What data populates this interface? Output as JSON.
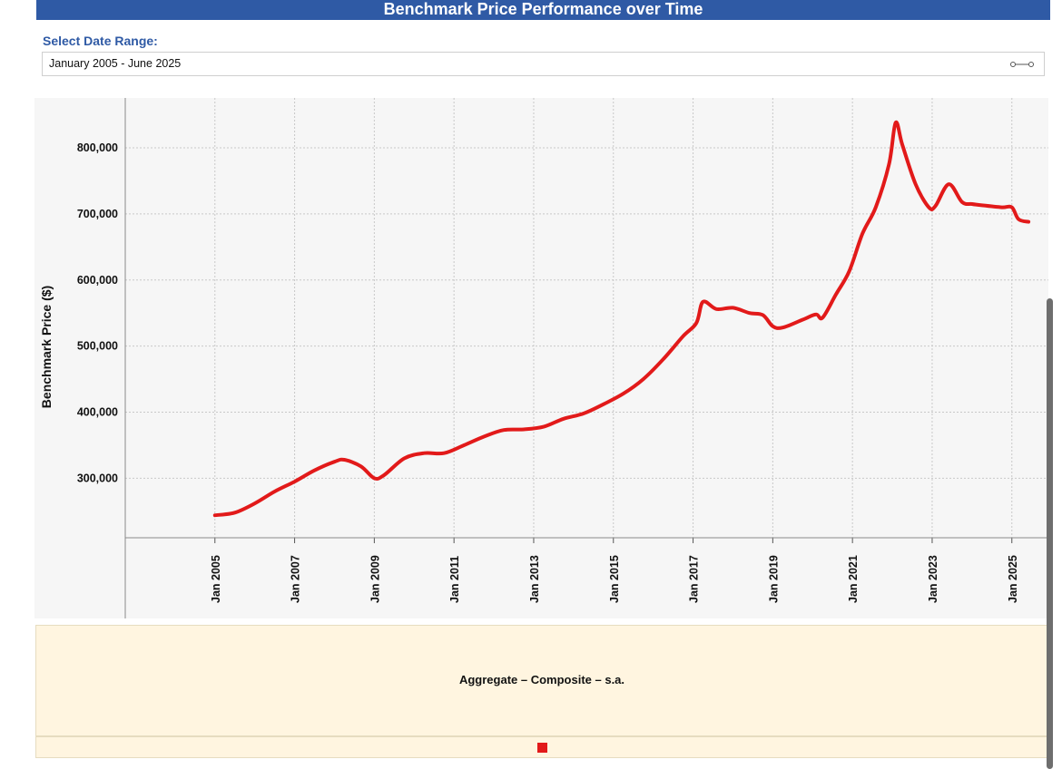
{
  "header": {
    "title": "Benchmark Price Performance over Time"
  },
  "date_range": {
    "label": "Select Date Range:",
    "value": "January 2005 - June 2025",
    "icon": "range-slider-icon"
  },
  "legend": {
    "title": "Aggregate – Composite – s.a."
  },
  "colors": {
    "header_bg": "#2f5aa5",
    "series": "#e21a1a",
    "legend_bg": "#fff5e0",
    "plot_bg": "#f6f6f6"
  },
  "chart_data": {
    "type": "line",
    "title": "Benchmark Price Performance over Time",
    "xlabel": "",
    "ylabel": "Benchmark Price ($)",
    "ylim": [
      210000,
      870000
    ],
    "xlim": [
      "2002-10",
      "2025-12"
    ],
    "yticks": [
      300000,
      400000,
      500000,
      600000,
      700000,
      800000
    ],
    "ytick_labels": [
      "300,000",
      "400,000",
      "500,000",
      "600,000",
      "700,000",
      "800,000"
    ],
    "xticks": [
      "2005-01",
      "2007-01",
      "2009-01",
      "2011-01",
      "2013-01",
      "2015-01",
      "2017-01",
      "2019-01",
      "2021-01",
      "2023-01",
      "2025-01"
    ],
    "xtick_labels": [
      "Jan 2005",
      "Jan 2007",
      "Jan 2009",
      "Jan 2011",
      "Jan 2013",
      "Jan 2015",
      "Jan 2017",
      "Jan 2019",
      "Jan 2021",
      "Jan 2023",
      "Jan 2025"
    ],
    "grid": true,
    "legend_position": "bottom",
    "series": [
      {
        "name": "Aggregate – Composite – s.a.",
        "color": "#e21a1a",
        "x": [
          "2005-01",
          "2005-07",
          "2006-01",
          "2006-07",
          "2007-01",
          "2007-07",
          "2008-01",
          "2008-04",
          "2008-09",
          "2009-01",
          "2009-04",
          "2009-10",
          "2010-04",
          "2010-10",
          "2011-04",
          "2011-10",
          "2012-04",
          "2012-10",
          "2013-04",
          "2013-10",
          "2014-04",
          "2014-10",
          "2015-04",
          "2015-10",
          "2016-04",
          "2016-10",
          "2017-02",
          "2017-04",
          "2017-08",
          "2018-01",
          "2018-06",
          "2018-10",
          "2019-01",
          "2019-04",
          "2019-10",
          "2020-02",
          "2020-04",
          "2020-08",
          "2020-12",
          "2021-04",
          "2021-08",
          "2021-12",
          "2022-02",
          "2022-04",
          "2022-08",
          "2022-12",
          "2023-02",
          "2023-06",
          "2023-10",
          "2024-01",
          "2024-04",
          "2024-10",
          "2025-01",
          "2025-03",
          "2025-06"
        ],
        "y": [
          244000,
          248000,
          262000,
          280000,
          295000,
          312000,
          325000,
          328000,
          318000,
          300000,
          305000,
          330000,
          338000,
          338000,
          350000,
          363000,
          373000,
          374000,
          378000,
          390000,
          398000,
          412000,
          428000,
          450000,
          480000,
          515000,
          535000,
          567000,
          556000,
          558000,
          550000,
          547000,
          530000,
          528000,
          540000,
          548000,
          543000,
          578000,
          613000,
          670000,
          710000,
          775000,
          838000,
          805000,
          745000,
          710000,
          712000,
          745000,
          718000,
          715000,
          713000,
          710000,
          710000,
          692000,
          688000
        ]
      }
    ]
  }
}
